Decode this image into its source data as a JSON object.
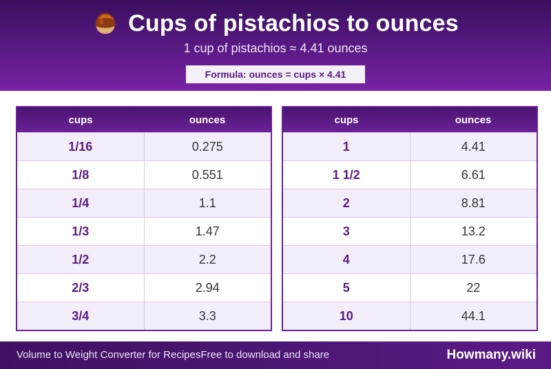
{
  "header": {
    "icon": "chestnut-icon",
    "title": "Cups of pistachios to ounces",
    "subtitle": "1 cup of pistachios ≈ 4.41 ounces",
    "formula": "Formula: ounces = cups × 4.41"
  },
  "colors": {
    "header_dark": "#3a0f5e",
    "header_light": "#7a22a6",
    "accent": "#5a1a85",
    "row_alt": "#f3eefa"
  },
  "tables": [
    {
      "headers": [
        "cups",
        "ounces"
      ],
      "rows": [
        {
          "cups": "1/16",
          "ounces": "0.275"
        },
        {
          "cups": "1/8",
          "ounces": "0.551"
        },
        {
          "cups": "1/4",
          "ounces": "1.1"
        },
        {
          "cups": "1/3",
          "ounces": "1.47"
        },
        {
          "cups": "1/2",
          "ounces": "2.2"
        },
        {
          "cups": "2/3",
          "ounces": "2.94"
        },
        {
          "cups": "3/4",
          "ounces": "3.3"
        }
      ]
    },
    {
      "headers": [
        "cups",
        "ounces"
      ],
      "rows": [
        {
          "cups": "1",
          "ounces": "4.41"
        },
        {
          "cups": "1 1/2",
          "ounces": "6.61"
        },
        {
          "cups": "2",
          "ounces": "8.81"
        },
        {
          "cups": "3",
          "ounces": "13.2"
        },
        {
          "cups": "4",
          "ounces": "17.6"
        },
        {
          "cups": "5",
          "ounces": "22"
        },
        {
          "cups": "10",
          "ounces": "44.1"
        }
      ]
    }
  ],
  "footer": {
    "left_text": "Volume to Weight Converter for Recipes",
    "middle_text": "Free to download and share",
    "brand": "Howmany.wiki"
  }
}
